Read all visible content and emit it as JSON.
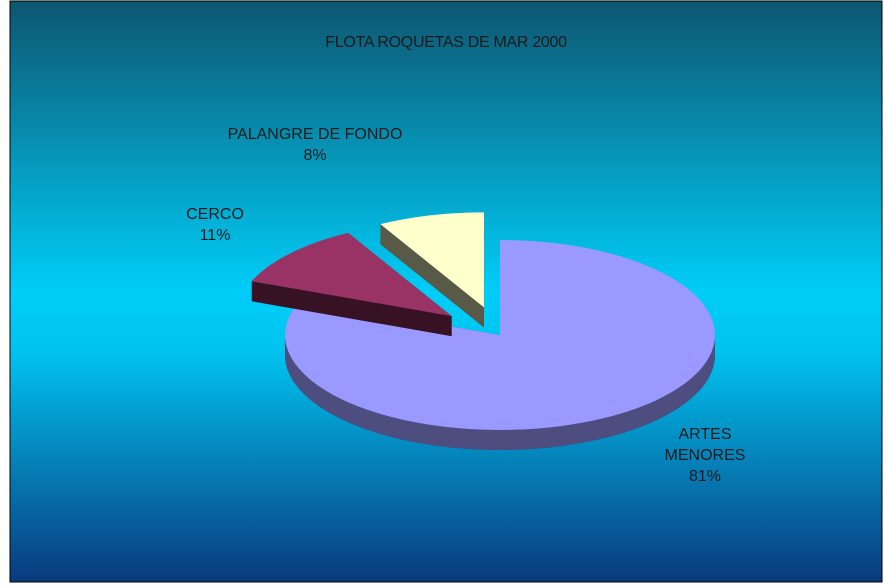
{
  "chart_data": {
    "type": "pie",
    "title": "FLOTA ROQUETAS DE MAR 2000",
    "categories": [
      "ARTES MENORES",
      "CERCO",
      "PALANGRE DE FONDO"
    ],
    "values": [
      81,
      11,
      8
    ],
    "value_labels": [
      "81%",
      "11%",
      "8%"
    ],
    "colors": [
      "#9999ff",
      "#993366",
      "#ffffcc"
    ],
    "exploded": [
      false,
      true,
      true
    ]
  }
}
